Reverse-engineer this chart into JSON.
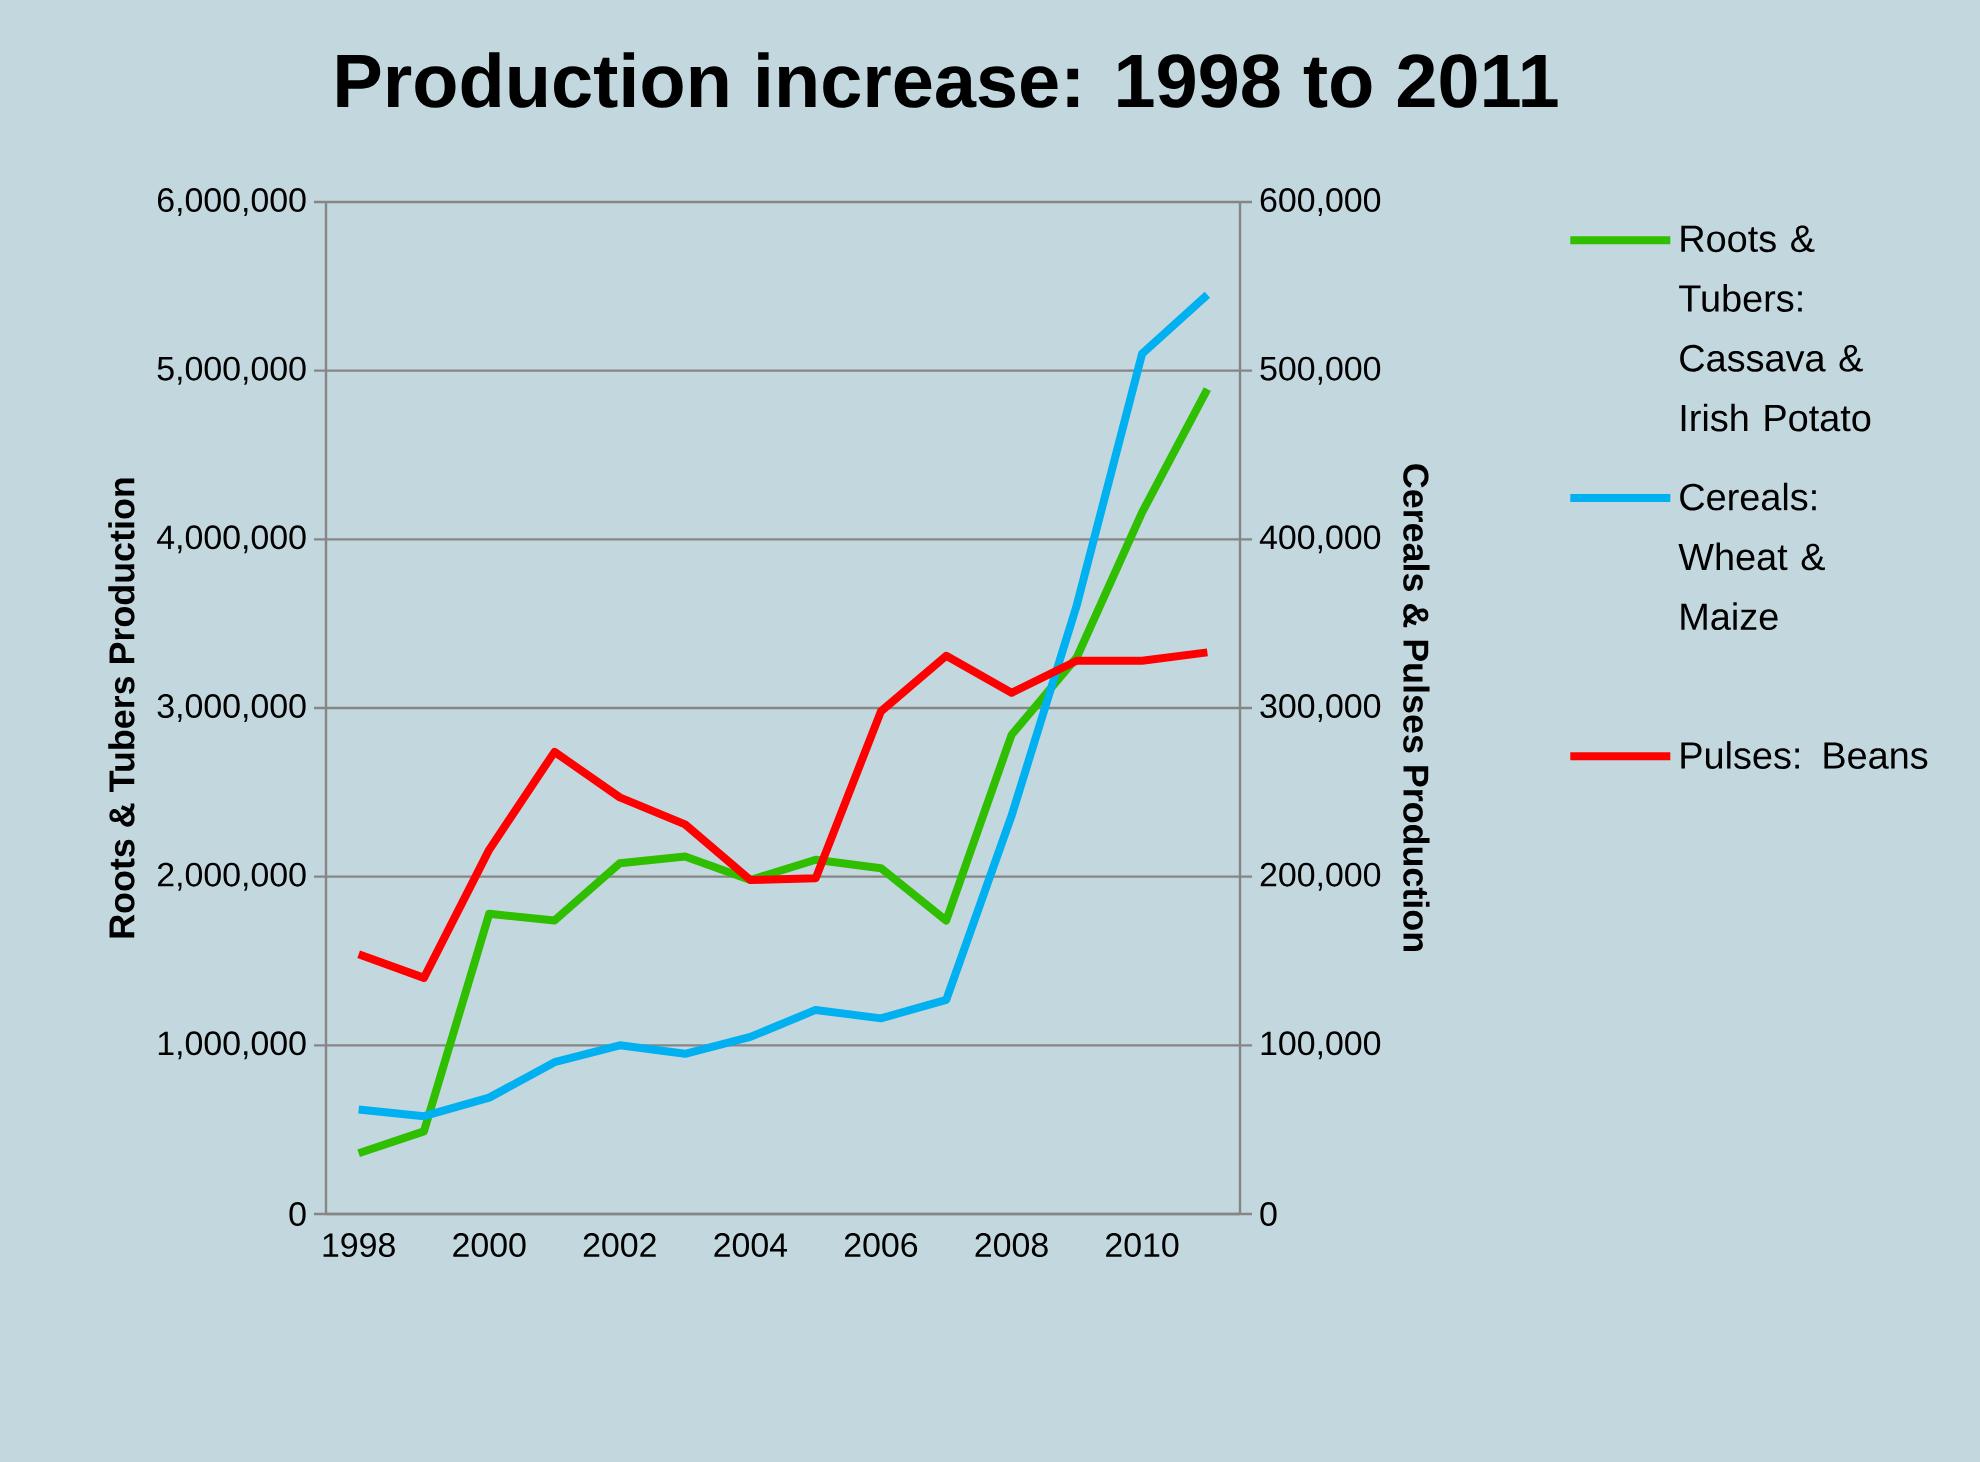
{
  "chart_data": {
    "type": "line",
    "title": "Production increase: 1998 to 2011",
    "ylabel": "Roots & Tubers Production",
    "y2label": "Cereals & Pulses Production",
    "categories": [
      "1998",
      null,
      "2000",
      null,
      "2002",
      null,
      "2004",
      null,
      "2006",
      null,
      "2008",
      null,
      "2010",
      null
    ],
    "series": [
      {
        "name": "Roots & Tubers: Cassava & Irish Potato",
        "color": "#2fbf00",
        "axis": "y",
        "values": [
          360000,
          490000,
          1780000,
          1740000,
          2080000,
          2120000,
          1980000,
          2100000,
          2050000,
          1740000,
          2840000,
          3300000,
          4160000,
          4890000
        ]
      },
      {
        "name": "Cereals: Wheat & Maize",
        "color": "#00b0f0",
        "axis": "y2",
        "values": [
          62000,
          58000,
          69000,
          90000,
          100000,
          95000,
          105000,
          121000,
          116000,
          127000,
          236000,
          361000,
          510000,
          545000
        ]
      },
      {
        "name": "Pulses: Beans",
        "color": "#ff0000",
        "axis": "y2",
        "values": [
          154000,
          140000,
          216000,
          274000,
          247000,
          231000,
          198000,
          199000,
          298000,
          331000,
          309000,
          328000,
          328000,
          333000
        ]
      }
    ],
    "ylim": [
      0,
      6000000
    ],
    "yticks": [
      0,
      {
        "value": 1000000,
        "label": "1,000,000"
      },
      {
        "value": 2000000,
        "label": "2,000,000"
      },
      {
        "value": 3000000,
        "label": "3,000,000"
      },
      {
        "value": 4000000,
        "label": "4,000,000"
      },
      {
        "value": 5000000,
        "label": "5,000,000"
      },
      {
        "value": 6000000,
        "label": "6,000,000"
      }
    ],
    "y2lim": [
      0,
      600000
    ],
    "y2ticks": [
      0,
      {
        "value": 100000,
        "label": "100,000"
      },
      {
        "value": 200000,
        "label": "200,000"
      },
      {
        "value": 300000,
        "label": "300,000"
      },
      {
        "value": 400000,
        "label": "400,000"
      },
      {
        "value": 500000,
        "label": "500,000"
      },
      {
        "value": 600000,
        "label": "600,000"
      }
    ],
    "grid": "y",
    "legend": "right",
    "marker": "none",
    "line_style": "solid"
  }
}
